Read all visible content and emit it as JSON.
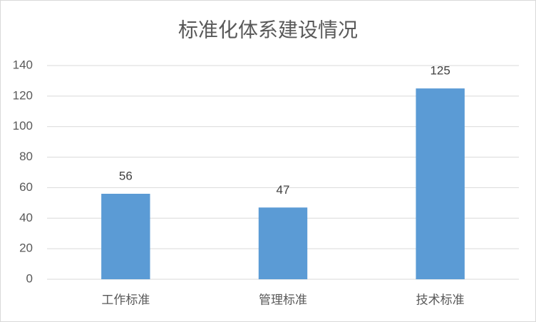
{
  "chart_data": {
    "type": "bar",
    "title": "标准化体系建设情况",
    "categories": [
      "工作标准",
      "管理标准",
      "技术标准"
    ],
    "values": [
      56,
      47,
      125
    ],
    "color": "#5b9bd5",
    "ylim": [
      0,
      140
    ],
    "yticks": [
      0,
      20,
      40,
      60,
      80,
      100,
      120,
      140
    ],
    "grid": true,
    "data_labels": true
  }
}
